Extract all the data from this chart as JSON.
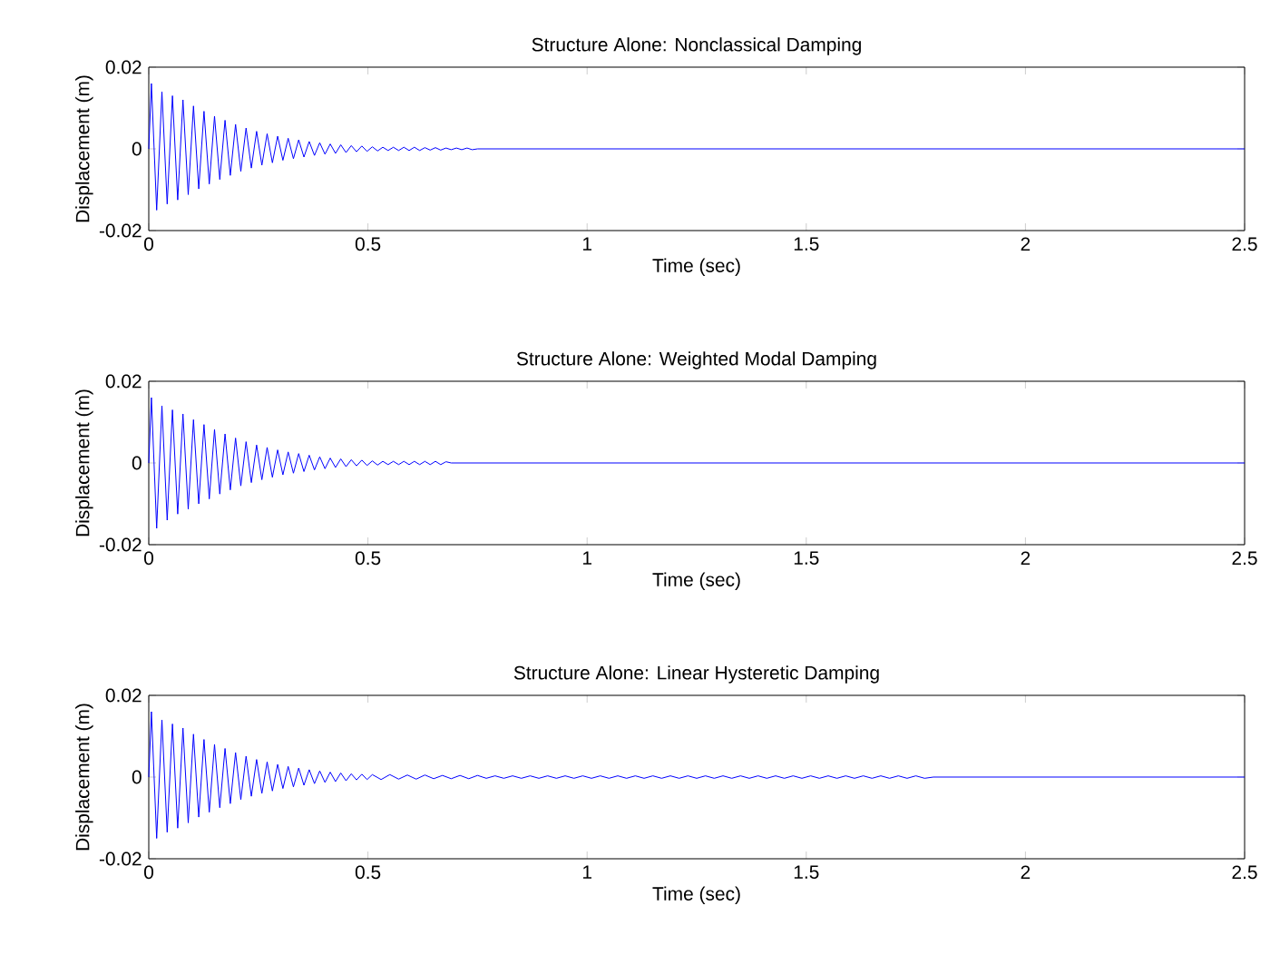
{
  "chart_data": [
    {
      "type": "line",
      "title": "Structure Alone: Nonclassical Damping",
      "xlabel": "Time (sec)",
      "ylabel": "Displacement (m)",
      "xlim": [
        0,
        2.5
      ],
      "ylim": [
        -0.02,
        0.02
      ],
      "xticks": [
        0,
        0.5,
        1,
        1.5,
        2,
        2.5
      ],
      "yticks": [
        -0.02,
        0,
        0.02
      ],
      "series": [
        {
          "color": "#0000ff",
          "x": [
            0,
            0.006,
            0.018,
            0.03,
            0.042,
            0.054,
            0.066,
            0.078,
            0.09,
            0.102,
            0.114,
            0.126,
            0.138,
            0.15,
            0.162,
            0.174,
            0.186,
            0.198,
            0.21,
            0.222,
            0.234,
            0.246,
            0.258,
            0.27,
            0.282,
            0.294,
            0.306,
            0.318,
            0.33,
            0.342,
            0.354,
            0.366,
            0.378,
            0.39,
            0.402,
            0.414,
            0.426,
            0.438,
            0.45,
            0.462,
            0.474,
            0.486,
            0.498,
            0.51,
            0.522,
            0.534,
            0.546,
            0.558,
            0.57,
            0.582,
            0.594,
            0.606,
            0.618,
            0.63,
            0.642,
            0.654,
            0.666,
            0.678,
            0.69,
            0.702,
            0.714,
            0.726,
            0.738,
            0.75,
            2.5
          ],
          "values": [
            0,
            0.016,
            -0.015,
            0.014,
            -0.0135,
            0.013,
            -0.0125,
            0.012,
            -0.0112,
            0.0105,
            -0.0098,
            0.0092,
            -0.0086,
            0.008,
            -0.0075,
            0.007,
            -0.0065,
            0.006,
            -0.0055,
            0.0051,
            -0.0047,
            0.0043,
            -0.004,
            0.0037,
            -0.0034,
            0.0031,
            -0.0028,
            0.0026,
            -0.0024,
            0.0022,
            -0.002,
            0.0018,
            -0.0016,
            0.0015,
            -0.0013,
            0.0012,
            -0.0011,
            0.001,
            -0.0009,
            0.0008,
            -0.0007,
            0.0007,
            -0.0006,
            0.0005,
            -0.0005,
            0.0004,
            -0.0004,
            0.0004,
            -0.0004,
            0.0004,
            -0.0004,
            0.0004,
            -0.0004,
            0.0003,
            -0.0003,
            0.0003,
            -0.0003,
            0.0002,
            -0.0002,
            0.0002,
            -0.0002,
            0.0002,
            -0.0002,
            0,
            0
          ]
        }
      ]
    },
    {
      "type": "line",
      "title": "Structure Alone: Weighted Modal Damping",
      "xlabel": "Time (sec)",
      "ylabel": "Displacement (m)",
      "xlim": [
        0,
        2.5
      ],
      "ylim": [
        -0.02,
        0.02
      ],
      "xticks": [
        0,
        0.5,
        1,
        1.5,
        2,
        2.5
      ],
      "yticks": [
        -0.02,
        0,
        0.02
      ],
      "series": [
        {
          "color": "#0000ff",
          "x": [
            0,
            0.006,
            0.018,
            0.03,
            0.042,
            0.054,
            0.066,
            0.078,
            0.09,
            0.102,
            0.114,
            0.126,
            0.138,
            0.15,
            0.162,
            0.174,
            0.186,
            0.198,
            0.21,
            0.222,
            0.234,
            0.246,
            0.258,
            0.27,
            0.282,
            0.294,
            0.306,
            0.318,
            0.33,
            0.342,
            0.354,
            0.366,
            0.378,
            0.39,
            0.402,
            0.414,
            0.426,
            0.438,
            0.45,
            0.462,
            0.474,
            0.486,
            0.498,
            0.51,
            0.522,
            0.534,
            0.546,
            0.558,
            0.57,
            0.582,
            0.594,
            0.606,
            0.618,
            0.63,
            0.642,
            0.654,
            0.666,
            0.678,
            0.69,
            2.5
          ],
          "values": [
            0,
            0.016,
            -0.016,
            0.014,
            -0.014,
            0.013,
            -0.0125,
            0.012,
            -0.0113,
            0.0106,
            -0.01,
            0.0094,
            -0.0088,
            0.0082,
            -0.0076,
            0.0071,
            -0.0066,
            0.0061,
            -0.0056,
            0.0052,
            -0.0048,
            0.0044,
            -0.0041,
            0.0038,
            -0.0035,
            0.0032,
            -0.0029,
            0.0027,
            -0.0025,
            0.0023,
            -0.0021,
            0.0019,
            -0.0017,
            0.0015,
            -0.0014,
            0.0012,
            -0.0011,
            0.001,
            -0.0009,
            0.0008,
            -0.0007,
            0.0007,
            -0.0006,
            0.0005,
            -0.0005,
            0.0004,
            -0.0004,
            0.0004,
            -0.0004,
            0.0004,
            -0.0004,
            0.0004,
            -0.0004,
            0.0004,
            -0.0004,
            0.0004,
            -0.0004,
            0.0003,
            0,
            0
          ]
        }
      ]
    },
    {
      "type": "line",
      "title": "Structure Alone: Linear Hysteretic Damping",
      "xlabel": "Time (sec)",
      "ylabel": "Displacement (m)",
      "xlim": [
        0,
        2.5
      ],
      "ylim": [
        -0.02,
        0.02
      ],
      "xticks": [
        0,
        0.5,
        1,
        1.5,
        2,
        2.5
      ],
      "yticks": [
        -0.02,
        0,
        0.02
      ],
      "series": [
        {
          "color": "#0000ff",
          "x": [
            0,
            0.006,
            0.018,
            0.03,
            0.042,
            0.054,
            0.066,
            0.078,
            0.09,
            0.102,
            0.114,
            0.126,
            0.138,
            0.15,
            0.162,
            0.174,
            0.186,
            0.198,
            0.21,
            0.222,
            0.234,
            0.246,
            0.258,
            0.27,
            0.282,
            0.294,
            0.306,
            0.318,
            0.33,
            0.342,
            0.354,
            0.366,
            0.378,
            0.39,
            0.402,
            0.414,
            0.426,
            0.438,
            0.45,
            0.462,
            0.474,
            0.486,
            0.498,
            0.51,
            0.53,
            0.55,
            0.57,
            0.59,
            0.61,
            0.63,
            0.65,
            0.67,
            0.69,
            0.71,
            0.73,
            0.75,
            0.77,
            0.79,
            0.81,
            0.83,
            0.85,
            0.87,
            0.89,
            0.91,
            0.93,
            0.95,
            0.97,
            0.99,
            1.01,
            1.03,
            1.05,
            1.07,
            1.09,
            1.11,
            1.13,
            1.15,
            1.17,
            1.19,
            1.21,
            1.23,
            1.25,
            1.27,
            1.29,
            1.31,
            1.33,
            1.35,
            1.37,
            1.39,
            1.41,
            1.43,
            1.45,
            1.47,
            1.49,
            1.51,
            1.53,
            1.55,
            1.57,
            1.59,
            1.61,
            1.63,
            1.65,
            1.67,
            1.69,
            1.71,
            1.73,
            1.75,
            1.77,
            1.79,
            2.5
          ],
          "values": [
            0,
            0.016,
            -0.015,
            0.014,
            -0.0135,
            0.013,
            -0.0125,
            0.012,
            -0.0112,
            0.0105,
            -0.0098,
            0.0092,
            -0.0086,
            0.008,
            -0.0075,
            0.007,
            -0.0065,
            0.006,
            -0.0055,
            0.0051,
            -0.0047,
            0.0043,
            -0.004,
            0.0037,
            -0.0034,
            0.0031,
            -0.0028,
            0.0026,
            -0.0024,
            0.0022,
            -0.002,
            0.0018,
            -0.0016,
            0.0015,
            -0.0013,
            0.0012,
            -0.0011,
            0.001,
            -0.0009,
            0.0008,
            -0.0007,
            0.0007,
            -0.0006,
            0.0006,
            -0.0006,
            0.0006,
            -0.0005,
            0.0005,
            -0.0005,
            0.0005,
            -0.0004,
            0.0004,
            -0.0004,
            0.0004,
            -0.0004,
            0.0004,
            -0.0003,
            0.0003,
            -0.0003,
            0.0003,
            -0.0003,
            0.0003,
            -0.0003,
            0.0003,
            -0.0003,
            0.0003,
            -0.0003,
            0.0003,
            -0.0003,
            0.0003,
            -0.0003,
            0.0003,
            -0.0003,
            0.0003,
            -0.0003,
            0.0003,
            -0.0003,
            0.0003,
            -0.0003,
            0.0003,
            -0.0003,
            0.0003,
            -0.0003,
            0.0003,
            -0.0003,
            0.0003,
            -0.0003,
            0.0003,
            -0.0003,
            0.0003,
            -0.0003,
            0.0003,
            -0.0003,
            0.0003,
            -0.0003,
            0.0003,
            -0.0003,
            0.0003,
            -0.0003,
            0.0003,
            -0.0003,
            0.0003,
            -0.0003,
            0.0003,
            -0.0003,
            0.0003,
            -0.0003,
            0,
            0
          ]
        }
      ]
    }
  ]
}
